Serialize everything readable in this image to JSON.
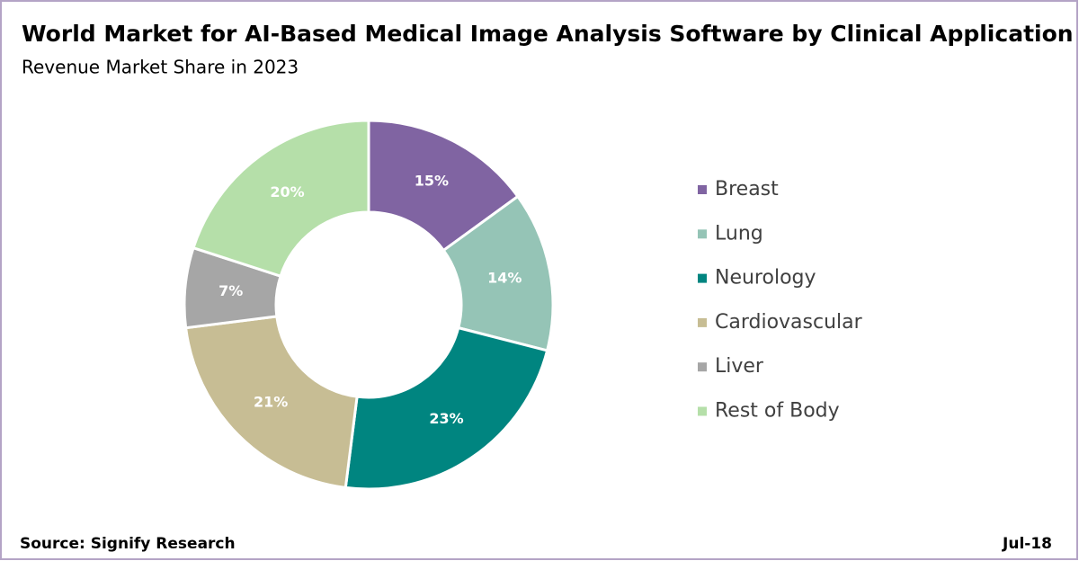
{
  "chart_data": {
    "type": "donut",
    "title": "World Market for AI-Based Medical Image Analysis Software by Clinical Application",
    "subtitle": "Revenue Market Share in 2023",
    "categories": [
      "Breast",
      "Lung",
      "Neurology",
      "Cardiovascular",
      "Liver",
      "Rest of Body"
    ],
    "values": [
      15,
      14,
      23,
      21,
      7,
      20
    ],
    "value_labels": [
      "15%",
      "14%",
      "23%",
      "21%",
      "7%",
      "20%"
    ],
    "colors": [
      "#8064a2",
      "#95c4b6",
      "#008580",
      "#c7bd94",
      "#a6a6a6",
      "#b5dfa9"
    ],
    "legend": "right",
    "source": "Source: Signify Research",
    "date": "Jul-18"
  }
}
